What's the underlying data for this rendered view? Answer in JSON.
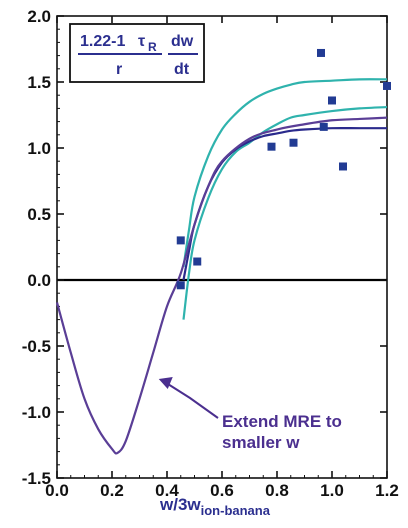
{
  "chart_data": {
    "type": "line",
    "xlim": [
      0.0,
      1.2
    ],
    "ylim": [
      -1.5,
      2.0
    ],
    "x_ticks": [
      "0.0",
      "0.2",
      "0.4",
      "0.6",
      "0.8",
      "1.0",
      "1.2"
    ],
    "y_ticks": [
      "2.0",
      "1.5",
      "1.0",
      "0.5",
      "0.0",
      "-0.5",
      "-1.0",
      "-1.5"
    ],
    "xlabel_main": "w/3w",
    "xlabel_sub": "ion-banana",
    "grid": false,
    "formula": {
      "lhs_top": "1.22-1",
      "tau": "τ",
      "tau_sub": "R",
      "lhs_bottom": "r",
      "rhs_top": "dw",
      "rhs_bottom": "dt"
    },
    "annotation": {
      "line1": "Extend MRE to",
      "line2": "smaller w",
      "arrow_target": [
        0.37,
        -0.75
      ]
    },
    "colors": {
      "teal": "#2fb3ad",
      "navy": "#2a2a8c",
      "purple": "#5a3e96",
      "marker": "#223b93",
      "zero_line": "#000000"
    },
    "series": [
      {
        "style": "teal",
        "points": [
          [
            0.46,
            -0.3
          ],
          [
            0.48,
            0.05
          ],
          [
            0.5,
            0.3
          ],
          [
            0.55,
            0.62
          ],
          [
            0.6,
            0.84
          ],
          [
            0.65,
            0.97
          ],
          [
            0.7,
            1.04
          ],
          [
            0.75,
            1.12
          ],
          [
            0.8,
            1.18
          ],
          [
            0.85,
            1.23
          ],
          [
            0.9,
            1.25
          ],
          [
            1.0,
            1.28
          ],
          [
            1.1,
            1.3
          ],
          [
            1.2,
            1.31
          ]
        ]
      },
      {
        "style": "teal",
        "points": [
          [
            0.46,
            0.1
          ],
          [
            0.48,
            0.38
          ],
          [
            0.5,
            0.63
          ],
          [
            0.55,
            0.94
          ],
          [
            0.6,
            1.14
          ],
          [
            0.65,
            1.26
          ],
          [
            0.7,
            1.35
          ],
          [
            0.75,
            1.41
          ],
          [
            0.8,
            1.45
          ],
          [
            0.85,
            1.48
          ],
          [
            0.9,
            1.5
          ],
          [
            1.0,
            1.51
          ],
          [
            1.1,
            1.52
          ],
          [
            1.2,
            1.52
          ]
        ]
      },
      {
        "style": "navy",
        "points": [
          [
            0.46,
            0.0
          ],
          [
            0.48,
            0.22
          ],
          [
            0.5,
            0.42
          ],
          [
            0.55,
            0.71
          ],
          [
            0.6,
            0.89
          ],
          [
            0.65,
            0.99
          ],
          [
            0.7,
            1.05
          ],
          [
            0.75,
            1.09
          ],
          [
            0.8,
            1.11
          ],
          [
            0.85,
            1.13
          ],
          [
            0.9,
            1.14
          ],
          [
            1.0,
            1.15
          ],
          [
            1.1,
            1.15
          ],
          [
            1.2,
            1.15
          ]
        ]
      },
      {
        "style": "purple",
        "points": [
          [
            0.0,
            -0.17
          ],
          [
            0.05,
            -0.55
          ],
          [
            0.1,
            -0.9
          ],
          [
            0.15,
            -1.13
          ],
          [
            0.2,
            -1.28
          ],
          [
            0.22,
            -1.31
          ],
          [
            0.25,
            -1.22
          ],
          [
            0.3,
            -0.9
          ],
          [
            0.35,
            -0.55
          ],
          [
            0.4,
            -0.2
          ],
          [
            0.45,
            0.05
          ],
          [
            0.5,
            0.42
          ],
          [
            0.55,
            0.71
          ],
          [
            0.6,
            0.9
          ],
          [
            0.7,
            1.07
          ],
          [
            0.8,
            1.14
          ],
          [
            0.9,
            1.18
          ],
          [
            1.0,
            1.21
          ],
          [
            1.1,
            1.22
          ],
          [
            1.2,
            1.23
          ]
        ]
      }
    ],
    "scatter": [
      [
        0.45,
        0.3
      ],
      [
        0.45,
        -0.04
      ],
      [
        0.51,
        0.14
      ],
      [
        0.78,
        1.01
      ],
      [
        0.86,
        1.04
      ],
      [
        0.96,
        1.72
      ],
      [
        0.97,
        1.16
      ],
      [
        1.0,
        1.36
      ],
      [
        1.04,
        0.86
      ],
      [
        1.2,
        1.47
      ]
    ]
  }
}
